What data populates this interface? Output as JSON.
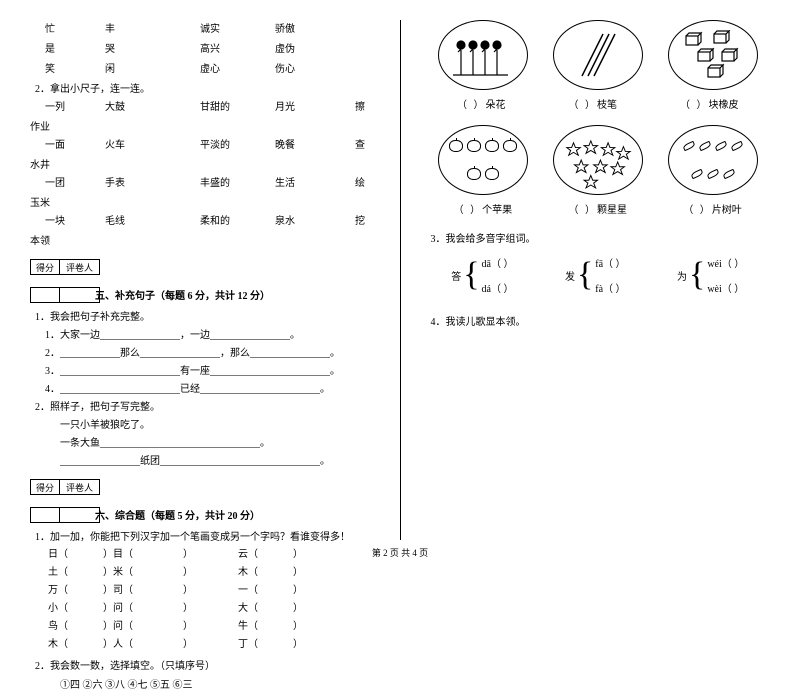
{
  "left": {
    "word_pairs": [
      [
        "忙",
        "丰",
        "",
        "诚实",
        "骄傲"
      ],
      [
        "是",
        "哭",
        "",
        "高兴",
        "虚伪"
      ],
      [
        "笑",
        "闲",
        "",
        "虚心",
        "伤心"
      ]
    ],
    "q2_title": "2．拿出小尺子，连一连。",
    "connect_rows": [
      [
        "一列",
        "大鼓",
        "甘甜的",
        "月光",
        "擦",
        "作业"
      ],
      [
        "一面",
        "火车",
        "平淡的",
        "晚餐",
        "查",
        "水井"
      ],
      [
        "一团",
        "手表",
        "丰盛的",
        "生活",
        "绘",
        "玉米"
      ],
      [
        "一块",
        "毛线",
        "柔和的",
        "泉水",
        "挖",
        "本领"
      ]
    ],
    "section5_title": "五、补充句子（每题 6 分，共计 12 分）",
    "q5_1": "1．我会把句子补充完整。",
    "q5_1_lines": [
      "1．大家一边________________，一边________________。",
      "2．____________那么________________，那么________________。",
      "3．________________________有一座________________________。",
      "4．________________________已经________________________。"
    ],
    "q5_2": "2．照样子，把句子写完整。",
    "q5_2_lines": [
      "一只小羊被狼吃了。",
      "一条大鱼________________________________。",
      "________________纸团________________________________。"
    ],
    "section6_title": "六、综合题（每题 5 分，共计 20 分）",
    "q6_1": "1．加一加，你能把下列汉字加一个笔画变成另一个字吗？看谁变得多！",
    "char_rows": [
      [
        "日（",
        "）目（",
        "）",
        "云（",
        "）"
      ],
      [
        "土（",
        "）米（",
        "）",
        "木（",
        "）"
      ],
      [
        "万（",
        "）司（",
        "）",
        "一（",
        "）"
      ],
      [
        "小（",
        "）问（",
        "）",
        "大（",
        "）"
      ],
      [
        "鸟（",
        "）问（",
        "）",
        "牛（",
        "）"
      ],
      [
        "木（",
        "）人（",
        "）",
        "丁（",
        "）"
      ]
    ],
    "q6_2": "2．我会数一数，选择填空。（只填序号）",
    "circles": "①四    ②六    ③八    ④七    ⑤五    ⑥三"
  },
  "right": {
    "labels_row1": [
      {
        "paren": "（    ）",
        "text": "朵花"
      },
      {
        "paren": "（    ）",
        "text": "枝笔"
      },
      {
        "paren": "（    ）",
        "text": "块橡皮"
      }
    ],
    "labels_row2": [
      {
        "paren": "（    ）",
        "text": "个苹果"
      },
      {
        "paren": "（    ）",
        "text": "颗星星"
      },
      {
        "paren": "（    ）",
        "text": "片树叶"
      }
    ],
    "q3": "3．我会给多音字组词。",
    "pinyin_groups": [
      {
        "char": "答",
        "top": "dā（      ）",
        "bot": "dá（      ）"
      },
      {
        "char": "发",
        "top": "fā（      ）",
        "bot": "fà（      ）"
      },
      {
        "char": "为",
        "top": "wéi（      ）",
        "bot": "wèi（      ）"
      }
    ],
    "q4": "4．我读儿歌显本领。"
  },
  "score_labels": [
    "得分",
    "评卷人"
  ],
  "footer": "第 2 页  共 4 页"
}
